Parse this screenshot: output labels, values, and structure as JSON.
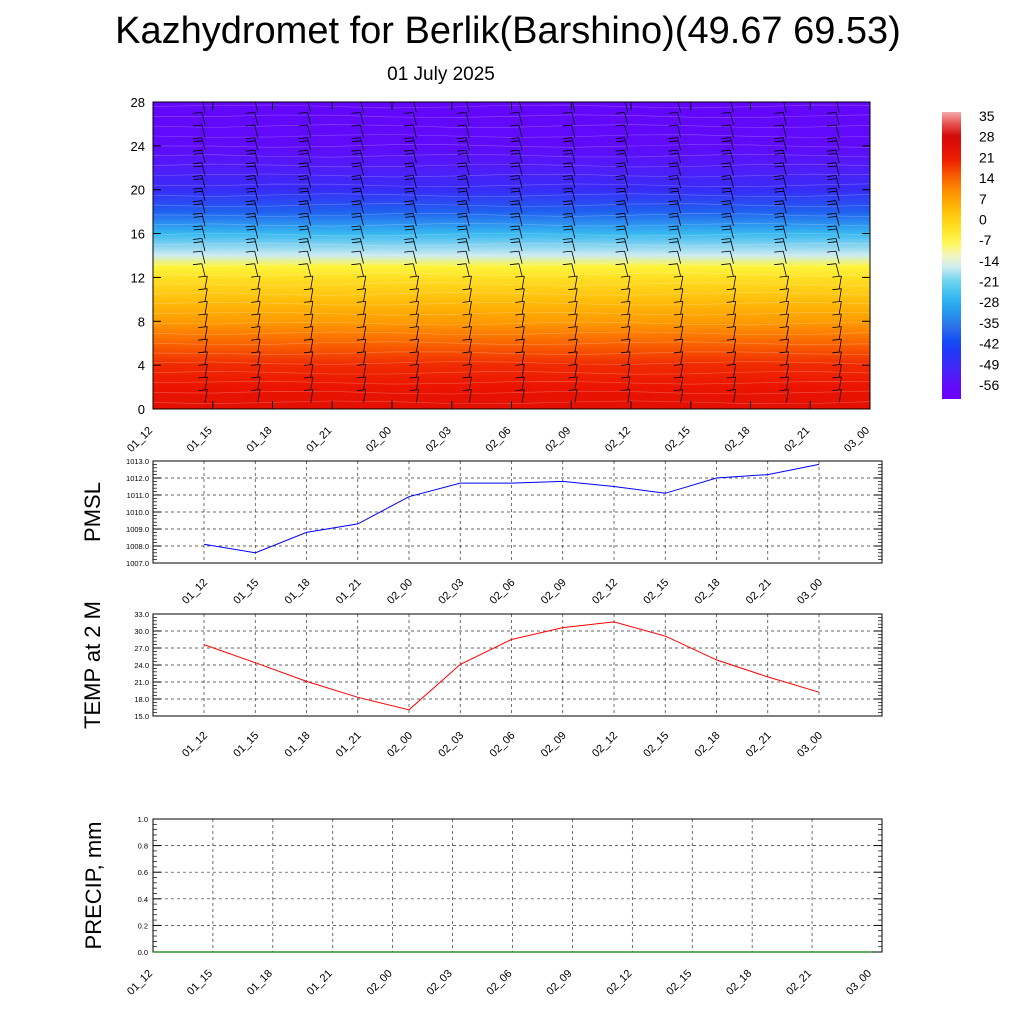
{
  "title": "Kazhydromet for Berlik(Barshino)(49.67 69.53)",
  "subtitle": "01 July 2025",
  "colors": {
    "pmsl_line": "#0000ff",
    "temp_line": "#ff0000",
    "precip_line": "#008000",
    "grid": "#000000",
    "barbs": "#000000"
  },
  "chart_data": [
    {
      "id": "cross_section",
      "type": "heatmap",
      "title": "",
      "xlabel": "",
      "ylabel": "",
      "ylim": [
        0,
        28
      ],
      "y_ticks": [
        0,
        4,
        8,
        12,
        16,
        20,
        24,
        28
      ],
      "x_ticks": [
        "01_12",
        "01_15",
        "01_18",
        "01_21",
        "02_00",
        "02_03",
        "02_06",
        "02_09",
        "02_12",
        "02_15",
        "02_18",
        "02_21",
        "03_00"
      ],
      "legend_position": "right",
      "colorbar_labels": [
        "35",
        "28",
        "21",
        "14",
        "7",
        "0",
        "-7",
        "-14",
        "-21",
        "-28",
        "-35",
        "-42",
        "-49",
        "-56"
      ],
      "temperature_profile": [
        {
          "level": 0,
          "value": 24
        },
        {
          "level": 2,
          "value": 21
        },
        {
          "level": 4,
          "value": 19
        },
        {
          "level": 6,
          "value": 14
        },
        {
          "level": 8,
          "value": 8
        },
        {
          "level": 10,
          "value": 3
        },
        {
          "level": 12,
          "value": -3
        },
        {
          "level": 13,
          "value": -7
        },
        {
          "level": 14,
          "value": -16
        },
        {
          "level": 16,
          "value": -26
        },
        {
          "level": 18,
          "value": -38
        },
        {
          "level": 20,
          "value": -48
        },
        {
          "level": 22,
          "value": -52
        },
        {
          "level": 24,
          "value": -55
        },
        {
          "level": 26,
          "value": -56
        },
        {
          "level": 28,
          "value": -57
        }
      ],
      "wind_barbs": "present"
    },
    {
      "id": "pmsl",
      "type": "line",
      "ylabel": "PMSL",
      "ylim": [
        1007.0,
        1013.0
      ],
      "y_ticks": [
        "1007.0",
        "1008.0",
        "1009.0",
        "1010.0",
        "1011.0",
        "1012.0",
        "1013.0"
      ],
      "x_ticks": [
        "01_12",
        "01_15",
        "01_18",
        "01_21",
        "02_00",
        "02_03",
        "02_06",
        "02_09",
        "02_12",
        "02_15",
        "02_18",
        "02_21",
        "03_00"
      ],
      "grid": true,
      "series": [
        {
          "values": [
            1008.1,
            1007.6,
            1008.8,
            1009.3,
            1010.9,
            1011.7,
            1011.7,
            1011.8,
            1011.5,
            1011.1,
            1012.0,
            1012.2,
            1012.8
          ]
        }
      ]
    },
    {
      "id": "temp",
      "type": "line",
      "ylabel": "TEMP at 2 M",
      "ylim": [
        15.0,
        33.0
      ],
      "y_ticks": [
        "15.0",
        "18.0",
        "21.0",
        "24.0",
        "27.0",
        "30.0",
        "33.0"
      ],
      "x_ticks": [
        "01_12",
        "01_15",
        "01_18",
        "01_21",
        "02_00",
        "02_03",
        "02_06",
        "02_09",
        "02_12",
        "02_15",
        "02_18",
        "02_21",
        "03_00"
      ],
      "grid": true,
      "series": [
        {
          "values": [
            27.6,
            24.4,
            21.1,
            18.3,
            16.1,
            24.1,
            28.5,
            30.6,
            31.6,
            29.1,
            24.9,
            21.9,
            19.2
          ]
        }
      ]
    },
    {
      "id": "precip",
      "type": "line",
      "ylabel": "PRECIP, mm",
      "ylim": [
        0.0,
        1.0
      ],
      "y_ticks": [
        "0.0",
        "0.2",
        "0.4",
        "0.6",
        "0.8",
        "1.0"
      ],
      "x_ticks": [
        "01_12",
        "01_15",
        "01_18",
        "01_21",
        "02_00",
        "02_03",
        "02_06",
        "02_09",
        "02_12",
        "02_15",
        "02_18",
        "02_21",
        "03_00"
      ],
      "grid": true,
      "series": [
        {
          "values": [
            0,
            0,
            0,
            0,
            0,
            0,
            0,
            0,
            0,
            0,
            0,
            0,
            0
          ]
        }
      ]
    }
  ]
}
